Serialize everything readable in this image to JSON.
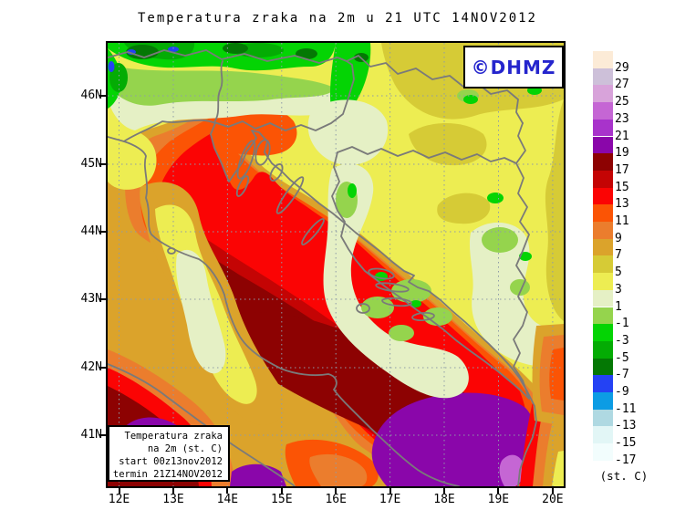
{
  "title": "Temperatura zraka na 2m u 21 UTC 14NOV2012",
  "watermark": "©DHMZ",
  "info_box": {
    "lines": [
      "Temperatura zraka",
      "na 2m (st. C)",
      "start 00z13nov2012",
      "termin 21Z14NOV2012"
    ]
  },
  "axes": {
    "lat_labels": [
      "46N",
      "45N",
      "44N",
      "43N",
      "42N",
      "41N"
    ],
    "lon_labels": [
      "12E",
      "13E",
      "14E",
      "15E",
      "16E",
      "17E",
      "18E",
      "19E",
      "20E"
    ]
  },
  "colorbar": {
    "unit_label": "(st. C)",
    "tick_labels": [
      "29",
      "27",
      "25",
      "23",
      "21",
      "19",
      "17",
      "15",
      "13",
      "11",
      "9",
      "7",
      "5",
      "3",
      "1",
      "-1",
      "-3",
      "-5",
      "-7",
      "-9",
      "-11",
      "-13",
      "-15",
      "-17"
    ],
    "colors": [
      "#FCEBD7",
      "#CDC0D9",
      "#D8A3DA",
      "#C566D4",
      "#A833CB",
      "#8A06AA",
      "#8D0202",
      "#C40404",
      "#FB0404",
      "#FB5405",
      "#EB7D2D",
      "#DBA32B",
      "#D6CB36",
      "#EDED52",
      "#E5F0C5",
      "#95D44D",
      "#04D404",
      "#04AC04",
      "#047804",
      "#2442F4",
      "#0C9CE4",
      "#AFD9E2",
      "#E2F6F6",
      "#F2FDFD"
    ]
  }
}
